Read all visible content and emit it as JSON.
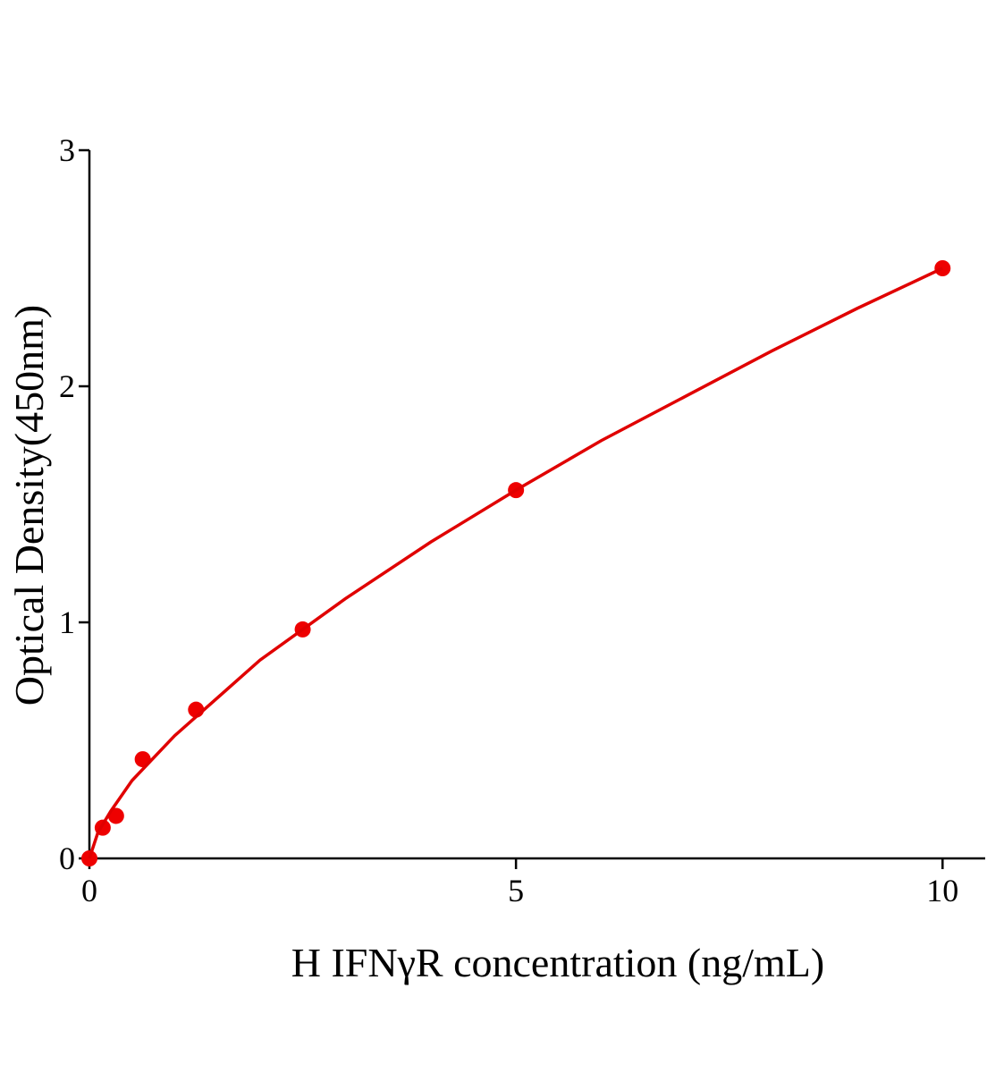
{
  "chart_data": {
    "type": "scatter",
    "x_label": "H IFNγR concentration (ng/mL)",
    "y_label": "Optical Density(450nm)",
    "xlim": [
      0,
      10.5
    ],
    "ylim": [
      0,
      3
    ],
    "xticks": [
      0,
      5,
      10
    ],
    "yticks": [
      0,
      1,
      2,
      3
    ],
    "series": [
      {
        "x": [
          0,
          0.156,
          0.3125,
          0.625,
          1.25,
          2.5,
          5,
          10
        ],
        "values": [
          0,
          0.13,
          0.18,
          0.42,
          0.63,
          0.97,
          1.56,
          2.5
        ],
        "color": "#ee0000",
        "marker": true
      },
      {
        "x": [
          0,
          0.1,
          0.25,
          0.5,
          1,
          2,
          3,
          4,
          5,
          6,
          7,
          8,
          9,
          10
        ],
        "values": [
          0,
          0.11,
          0.2,
          0.33,
          0.52,
          0.84,
          1.1,
          1.34,
          1.56,
          1.77,
          1.96,
          2.15,
          2.33,
          2.5
        ],
        "color": "#e00000",
        "line": true
      }
    ]
  }
}
